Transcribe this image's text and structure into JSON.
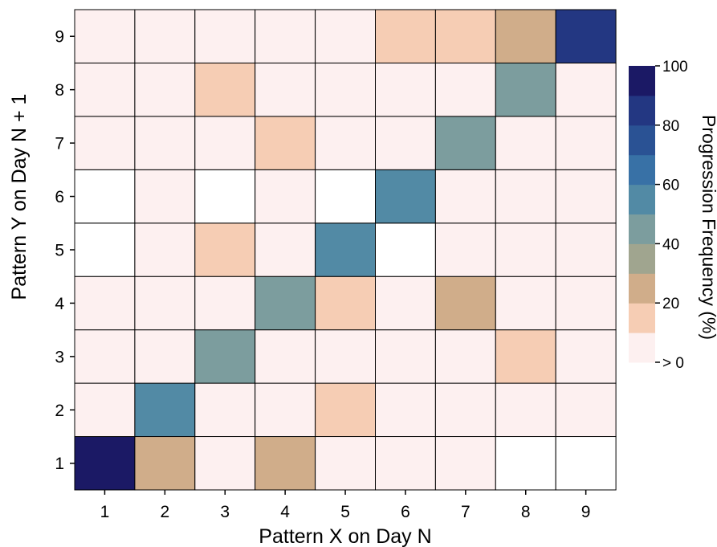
{
  "chart_data": {
    "type": "heatmap",
    "xlabel": "Pattern X on Day N",
    "ylabel": "Pattern Y on Day N + 1",
    "x_categories": [
      "1",
      "2",
      "3",
      "4",
      "5",
      "6",
      "7",
      "8",
      "9"
    ],
    "y_categories": [
      "1",
      "2",
      "3",
      "4",
      "5",
      "6",
      "7",
      "8",
      "9"
    ],
    "values": [
      [
        90,
        25,
        5,
        25,
        5,
        5,
        5,
        0,
        0
      ],
      [
        5,
        55,
        5,
        5,
        15,
        5,
        5,
        5,
        5
      ],
      [
        5,
        5,
        45,
        5,
        5,
        5,
        5,
        15,
        5
      ],
      [
        5,
        5,
        5,
        45,
        15,
        5,
        25,
        5,
        5
      ],
      [
        0,
        5,
        15,
        5,
        55,
        0,
        5,
        5,
        5
      ],
      [
        0,
        5,
        0,
        5,
        0,
        55,
        5,
        5,
        5
      ],
      [
        5,
        5,
        5,
        15,
        5,
        5,
        45,
        5,
        5
      ],
      [
        5,
        5,
        15,
        5,
        5,
        5,
        5,
        45,
        5
      ],
      [
        5,
        5,
        5,
        5,
        5,
        15,
        15,
        25,
        85
      ]
    ],
    "values_note_rows": "rows ordered by Pattern Y from 1 to 9; columns by Pattern X from 1 to 9",
    "colorbar": {
      "label": "Progression Frequency (%)",
      "ticks": [
        "> 0",
        "20",
        "40",
        "60",
        "80",
        "100"
      ],
      "tick_values": [
        0,
        20,
        40,
        60,
        80,
        100
      ],
      "range": [
        0,
        100
      ],
      "bins": 10,
      "colors": [
        "#fdf0f0",
        "#f6cdb4",
        "#d0ad8a",
        "#a0a58f",
        "#7c9d9e",
        "#528aa5",
        "#3871a6",
        "#2a5294",
        "#233782",
        "#1b1965"
      ]
    }
  }
}
